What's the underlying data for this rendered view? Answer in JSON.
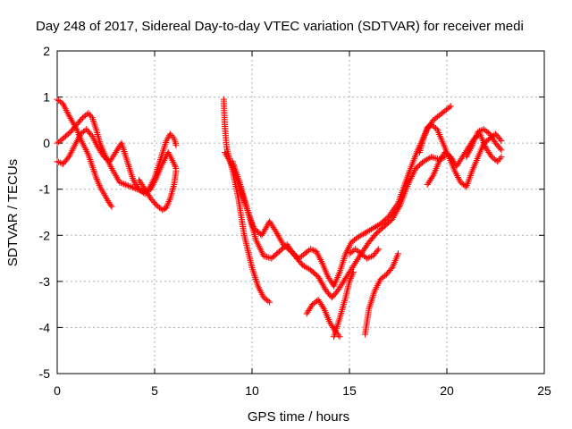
{
  "chart_data": {
    "type": "scatter",
    "title": "Day 248 of 2017, Sidereal Day-to-day VTEC variation (SDTVAR) for receiver medi",
    "xlabel": "GPS time / hours",
    "ylabel": "SDTVAR / TECUs",
    "xlim": [
      0,
      25
    ],
    "ylim": [
      -5,
      2
    ],
    "xticks": [
      "0",
      "5",
      "10",
      "15",
      "20",
      "25"
    ],
    "yticks": [
      "-5",
      "-4",
      "-3",
      "-2",
      "-1",
      "0",
      "1",
      "2"
    ],
    "grid": true,
    "marker": "+",
    "color": "#ff0000",
    "series": [
      {
        "x": [
          0.0,
          0.3,
          0.6,
          1.0,
          1.3,
          1.6,
          1.8,
          2.0,
          2.2,
          2.4,
          2.6,
          2.8
        ],
        "y": [
          0.95,
          0.85,
          0.6,
          0.3,
          0.0,
          -0.25,
          -0.5,
          -0.75,
          -0.95,
          -1.1,
          -1.25,
          -1.38
        ]
      },
      {
        "x": [
          0.0,
          0.3,
          0.7,
          1.0,
          1.3,
          1.6,
          1.8,
          2.0,
          2.2,
          2.5,
          2.8,
          3.0,
          3.2,
          3.5,
          3.8,
          4.1,
          4.4,
          4.7,
          5.0,
          5.3,
          5.6,
          5.8,
          6.0,
          6.1
        ],
        "y": [
          0.0,
          0.1,
          0.25,
          0.4,
          0.55,
          0.65,
          0.55,
          0.3,
          0.0,
          -0.3,
          -0.55,
          -0.7,
          -0.85,
          -0.9,
          -0.95,
          -1.0,
          -1.05,
          -1.0,
          -0.75,
          -0.35,
          0.05,
          0.2,
          0.1,
          -0.05
        ]
      },
      {
        "x": [
          0.0,
          0.3,
          0.6,
          0.9,
          1.2,
          1.5,
          1.8,
          2.1,
          2.4,
          2.7,
          3.0,
          3.3,
          3.6,
          3.9,
          4.2,
          4.5,
          4.8,
          5.1,
          5.4,
          5.7,
          6.0,
          6.1
        ],
        "y": [
          -0.4,
          -0.45,
          -0.3,
          -0.05,
          0.2,
          0.3,
          0.15,
          -0.1,
          -0.3,
          -0.4,
          -0.2,
          0.0,
          -0.4,
          -0.8,
          -1.0,
          -1.1,
          -1.0,
          -0.75,
          -0.45,
          -0.2,
          -0.45,
          -0.55
        ]
      },
      {
        "x": [
          4.2,
          4.5,
          4.8,
          5.1,
          5.4,
          5.6,
          5.8,
          6.0,
          6.1
        ],
        "y": [
          -0.8,
          -1.0,
          -1.2,
          -1.35,
          -1.45,
          -1.4,
          -1.2,
          -0.9,
          -0.6
        ]
      },
      {
        "x": [
          8.55,
          8.6,
          8.7,
          9.0,
          9.3,
          9.6,
          10.0,
          10.3,
          10.6,
          10.9
        ],
        "y": [
          0.95,
          0.4,
          -0.1,
          -0.6,
          -1.2,
          -2.0,
          -2.7,
          -3.1,
          -3.35,
          -3.45
        ]
      },
      {
        "x": [
          8.6,
          9.0,
          9.4,
          9.8,
          10.1,
          10.5,
          10.9,
          11.2,
          11.6,
          12.0,
          12.4,
          12.7,
          13.0,
          13.3,
          13.6,
          13.9,
          14.2,
          14.5,
          14.8,
          15.1,
          15.4,
          15.8,
          16.2,
          16.6,
          17.0,
          17.5,
          18.0,
          18.5,
          19.0,
          19.3,
          19.6,
          19.9,
          20.2
        ],
        "y": [
          -0.2,
          -0.5,
          -1.0,
          -1.5,
          -1.85,
          -2.0,
          -1.7,
          -1.9,
          -2.2,
          -2.35,
          -2.5,
          -2.4,
          -2.3,
          -2.35,
          -2.6,
          -2.9,
          -3.1,
          -2.8,
          -2.4,
          -2.15,
          -2.05,
          -1.95,
          -1.85,
          -1.75,
          -1.6,
          -1.3,
          -0.7,
          -0.15,
          0.3,
          0.5,
          0.6,
          0.7,
          0.8
        ]
      },
      {
        "x": [
          9.0,
          9.4,
          9.8,
          10.2,
          10.6,
          11.0,
          11.4,
          11.8,
          12.2,
          12.6,
          13.0,
          13.4,
          13.8,
          14.1,
          14.4,
          14.7,
          15.0,
          15.3,
          15.6,
          16.0,
          16.4,
          16.8,
          17.2,
          17.6,
          18.0,
          18.4,
          18.8,
          19.2,
          19.6,
          19.9
        ],
        "y": [
          -0.4,
          -0.9,
          -1.5,
          -2.1,
          -2.45,
          -2.5,
          -2.35,
          -2.2,
          -2.45,
          -2.65,
          -2.75,
          -2.9,
          -3.2,
          -3.35,
          -3.2,
          -3.0,
          -2.8,
          -2.6,
          -2.4,
          -2.15,
          -1.95,
          -1.8,
          -1.65,
          -1.35,
          -0.9,
          -0.55,
          -0.4,
          -0.3,
          -0.35,
          -0.3
        ]
      },
      {
        "x": [
          12.8,
          13.1,
          13.4,
          13.7,
          14.0,
          14.3,
          14.5
        ],
        "y": [
          -3.7,
          -3.5,
          -3.4,
          -3.6,
          -3.9,
          -4.1,
          -4.2
        ]
      },
      {
        "x": [
          14.2,
          14.5,
          14.8,
          15.0,
          15.2
        ],
        "y": [
          -4.2,
          -3.8,
          -3.35,
          -3.0,
          -2.8
        ]
      },
      {
        "x": [
          15.8,
          16.0,
          16.3,
          16.6,
          16.9,
          17.2,
          17.5
        ],
        "y": [
          -4.15,
          -3.6,
          -3.2,
          -2.95,
          -2.85,
          -2.7,
          -2.4
        ]
      },
      {
        "x": [
          15.0,
          15.3,
          15.6,
          15.9,
          16.2,
          16.5
        ],
        "y": [
          -2.4,
          -2.3,
          -2.4,
          -2.5,
          -2.45,
          -2.3
        ]
      },
      {
        "x": [
          18.6,
          18.8,
          19.0,
          19.2,
          19.5,
          19.8,
          20.1,
          20.4,
          20.7,
          21.0,
          21.3,
          21.6,
          21.9,
          22.2,
          22.5,
          22.8
        ],
        "y": [
          -0.2,
          0.1,
          0.35,
          0.4,
          0.3,
          0.0,
          -0.3,
          -0.6,
          -0.85,
          -0.95,
          -0.6,
          -0.3,
          0.0,
          0.1,
          0.2,
          0.05
        ]
      },
      {
        "x": [
          19.0,
          19.3,
          19.6,
          19.9,
          20.2,
          20.5,
          20.8,
          21.1,
          21.4,
          21.7,
          22.0,
          22.3,
          22.6,
          22.8
        ],
        "y": [
          -0.9,
          -0.7,
          -0.4,
          -0.2,
          -0.3,
          -0.5,
          -0.3,
          -0.1,
          0.1,
          0.2,
          -0.1,
          -0.3,
          -0.4,
          -0.3
        ]
      },
      {
        "x": [
          21.0,
          21.3,
          21.6,
          21.9,
          22.2,
          22.5,
          22.8
        ],
        "y": [
          -0.3,
          -0.05,
          0.25,
          0.3,
          0.2,
          0.0,
          -0.15
        ]
      }
    ]
  }
}
